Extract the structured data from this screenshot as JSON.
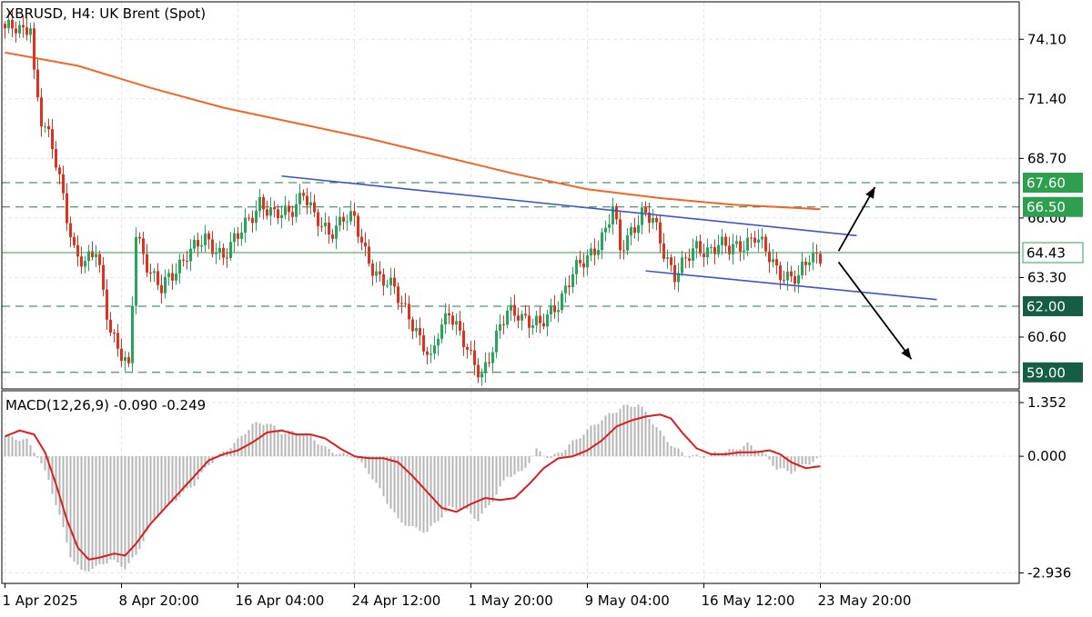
{
  "chart_data": [
    {
      "type": "candlestick",
      "symbol": "XBRUSD",
      "timeframe": "H4:",
      "title_name": "UK Brent (Spot)",
      "y_ticks": [
        "74.10",
        "71.40",
        "68.70",
        "66.00",
        "63.30",
        "60.60"
      ],
      "ylim": [
        58.25,
        75.8
      ],
      "x_labels": [
        "1 Apr 2025",
        "8 Apr 20:00",
        "16 Apr 04:00",
        "24 Apr 12:00",
        "1 May 20:00",
        "9 May 04:00",
        "16 May 12:00",
        "23 May 20:00"
      ],
      "current_price": "64.43",
      "grid": true,
      "colors": {
        "up": "#26a65b",
        "down": "#e0301e",
        "ma": "#f26522",
        "trend": "#3e55c9",
        "level": "#1e7a4a",
        "current": "#3a9d55"
      },
      "levels": [
        {
          "label": "67.60",
          "value": 67.6,
          "style": "dashed",
          "box": "#2e9e4f"
        },
        {
          "label": "66.50",
          "value": 66.5,
          "style": "dashed",
          "box": "#2e9e4f"
        },
        {
          "label": "62.00",
          "value": 62.0,
          "style": "dashed",
          "box": "#155e45"
        },
        {
          "label": "59.00",
          "value": 59.0,
          "style": "dashed",
          "box": "#155e45"
        }
      ],
      "anchors": [
        [
          0,
          74.6
        ],
        [
          5,
          74.4
        ],
        [
          7,
          74.9
        ],
        [
          8,
          72.6
        ],
        [
          10,
          70.5
        ],
        [
          13,
          69.1
        ],
        [
          16,
          67.0
        ],
        [
          19,
          64.6
        ],
        [
          22,
          63.8
        ],
        [
          25,
          64.5
        ],
        [
          29,
          61.0
        ],
        [
          32,
          59.7
        ],
        [
          34,
          59.0
        ],
        [
          36,
          65.3
        ],
        [
          40,
          63.6
        ],
        [
          43,
          62.7
        ],
        [
          46,
          63.4
        ],
        [
          50,
          64.5
        ],
        [
          55,
          64.9
        ],
        [
          60,
          64.4
        ],
        [
          64,
          65.1
        ],
        [
          67,
          65.9
        ],
        [
          70,
          66.8
        ],
        [
          74,
          66.0
        ],
        [
          78,
          66.3
        ],
        [
          82,
          67.2
        ],
        [
          85,
          65.9
        ],
        [
          89,
          65.4
        ],
        [
          93,
          66.0
        ],
        [
          96,
          65.8
        ],
        [
          99,
          64.5
        ],
        [
          103,
          63.2
        ],
        [
          107,
          62.7
        ],
        [
          111,
          61.7
        ],
        [
          114,
          60.4
        ],
        [
          117,
          59.4
        ],
        [
          119,
          60.9
        ],
        [
          122,
          61.9
        ],
        [
          125,
          60.6
        ],
        [
          128,
          59.6
        ],
        [
          131,
          59.0
        ],
        [
          134,
          60.1
        ],
        [
          138,
          61.7
        ],
        [
          141,
          61.8
        ],
        [
          144,
          61.3
        ],
        [
          147,
          61.0
        ],
        [
          150,
          61.8
        ],
        [
          153,
          62.5
        ],
        [
          156,
          63.4
        ],
        [
          159,
          64.0
        ],
        [
          162,
          64.7
        ],
        [
          165,
          65.4
        ],
        [
          167,
          66.4
        ],
        [
          169,
          64.5
        ],
        [
          172,
          65.5
        ],
        [
          175,
          66.2
        ],
        [
          178,
          65.8
        ],
        [
          181,
          64.5
        ],
        [
          184,
          63.5
        ],
        [
          187,
          64.0
        ],
        [
          190,
          64.6
        ],
        [
          193,
          64.6
        ],
        [
          196,
          64.8
        ],
        [
          199,
          64.5
        ],
        [
          203,
          64.9
        ],
        [
          206,
          65.2
        ],
        [
          209,
          64.4
        ],
        [
          212,
          63.7
        ],
        [
          215,
          63.4
        ],
        [
          218,
          63.2
        ],
        [
          221,
          64.2
        ],
        [
          224,
          64.4
        ]
      ],
      "ma": [
        [
          0,
          73.5
        ],
        [
          20,
          72.9
        ],
        [
          40,
          71.9
        ],
        [
          60,
          71.0
        ],
        [
          80,
          70.3
        ],
        [
          100,
          69.6
        ],
        [
          120,
          68.8
        ],
        [
          140,
          68.0
        ],
        [
          160,
          67.3
        ],
        [
          180,
          66.9
        ],
        [
          200,
          66.6
        ],
        [
          224,
          66.4
        ]
      ],
      "trendlines": [
        [
          [
            76,
            67.9
          ],
          [
            234,
            65.2
          ]
        ],
        [
          [
            176,
            63.6
          ],
          [
            256,
            62.3
          ]
        ]
      ],
      "arrows": [
        [
          [
            229,
            64.5
          ],
          [
            239,
            67.4
          ]
        ],
        [
          [
            229,
            64.0
          ],
          [
            249,
            59.6
          ]
        ]
      ]
    },
    {
      "type": "bar+line",
      "title": "MACD(12,26,9) -0.090 -0.249",
      "y_ticks": [
        "1.352",
        "0.000",
        "-2.936"
      ],
      "ylim": [
        -3.2,
        1.65
      ],
      "zero": 0,
      "colors": {
        "hist": "#b5b5b5",
        "signal": "#d81f1f"
      },
      "hist_anchors": [
        [
          0,
          0.5
        ],
        [
          6,
          0.4
        ],
        [
          9,
          0.0
        ],
        [
          12,
          -0.6
        ],
        [
          15,
          -1.5
        ],
        [
          18,
          -2.5
        ],
        [
          21,
          -2.9
        ],
        [
          25,
          -2.8
        ],
        [
          29,
          -2.6
        ],
        [
          33,
          -2.8
        ],
        [
          36,
          -2.5
        ],
        [
          40,
          -1.7
        ],
        [
          44,
          -1.3
        ],
        [
          48,
          -1.0
        ],
        [
          52,
          -0.7
        ],
        [
          56,
          -0.2
        ],
        [
          60,
          0.1
        ],
        [
          64,
          0.4
        ],
        [
          68,
          0.8
        ],
        [
          72,
          0.85
        ],
        [
          76,
          0.6
        ],
        [
          80,
          0.6
        ],
        [
          84,
          0.5
        ],
        [
          88,
          0.2
        ],
        [
          92,
          0.05
        ],
        [
          96,
          0.0
        ],
        [
          100,
          -0.4
        ],
        [
          104,
          -1.0
        ],
        [
          108,
          -1.6
        ],
        [
          112,
          -1.8
        ],
        [
          116,
          -1.9
        ],
        [
          119,
          -1.6
        ],
        [
          122,
          -1.3
        ],
        [
          126,
          -1.3
        ],
        [
          130,
          -1.6
        ],
        [
          134,
          -1.1
        ],
        [
          138,
          -0.5
        ],
        [
          142,
          -0.4
        ],
        [
          146,
          0.15
        ],
        [
          150,
          -0.05
        ],
        [
          154,
          0.2
        ],
        [
          158,
          0.5
        ],
        [
          162,
          0.8
        ],
        [
          166,
          1.05
        ],
        [
          170,
          1.25
        ],
        [
          174,
          1.3
        ],
        [
          176,
          1.1
        ],
        [
          180,
          0.6
        ],
        [
          184,
          0.2
        ],
        [
          188,
          0.0
        ],
        [
          192,
          0.0
        ],
        [
          196,
          0.1
        ],
        [
          200,
          0.15
        ],
        [
          204,
          0.3
        ],
        [
          208,
          0.1
        ],
        [
          212,
          -0.3
        ],
        [
          216,
          -0.4
        ],
        [
          220,
          -0.2
        ],
        [
          224,
          -0.05
        ]
      ],
      "signal_anchors": [
        [
          0,
          0.5
        ],
        [
          4,
          0.65
        ],
        [
          8,
          0.55
        ],
        [
          11,
          0.1
        ],
        [
          14,
          -0.7
        ],
        [
          17,
          -1.6
        ],
        [
          20,
          -2.3
        ],
        [
          23,
          -2.6
        ],
        [
          26,
          -2.55
        ],
        [
          30,
          -2.45
        ],
        [
          33,
          -2.5
        ],
        [
          36,
          -2.2
        ],
        [
          40,
          -1.7
        ],
        [
          44,
          -1.3
        ],
        [
          48,
          -0.9
        ],
        [
          52,
          -0.5
        ],
        [
          56,
          -0.1
        ],
        [
          60,
          0.05
        ],
        [
          64,
          0.15
        ],
        [
          68,
          0.35
        ],
        [
          72,
          0.6
        ],
        [
          76,
          0.65
        ],
        [
          80,
          0.55
        ],
        [
          84,
          0.55
        ],
        [
          88,
          0.45
        ],
        [
          92,
          0.2
        ],
        [
          96,
          0.0
        ],
        [
          100,
          -0.05
        ],
        [
          104,
          -0.05
        ],
        [
          108,
          -0.15
        ],
        [
          112,
          -0.5
        ],
        [
          116,
          -0.9
        ],
        [
          120,
          -1.3
        ],
        [
          124,
          -1.4
        ],
        [
          128,
          -1.2
        ],
        [
          132,
          -1.05
        ],
        [
          136,
          -1.1
        ],
        [
          140,
          -1.05
        ],
        [
          144,
          -0.7
        ],
        [
          148,
          -0.3
        ],
        [
          152,
          -0.05
        ],
        [
          156,
          0.0
        ],
        [
          160,
          0.15
        ],
        [
          164,
          0.4
        ],
        [
          168,
          0.75
        ],
        [
          172,
          0.9
        ],
        [
          176,
          1.0
        ],
        [
          180,
          1.05
        ],
        [
          183,
          0.95
        ],
        [
          186,
          0.6
        ],
        [
          190,
          0.2
        ],
        [
          194,
          0.05
        ],
        [
          198,
          0.05
        ],
        [
          202,
          0.1
        ],
        [
          206,
          0.1
        ],
        [
          210,
          0.15
        ],
        [
          213,
          0.05
        ],
        [
          216,
          -0.15
        ],
        [
          220,
          -0.3
        ],
        [
          224,
          -0.25
        ]
      ]
    }
  ]
}
